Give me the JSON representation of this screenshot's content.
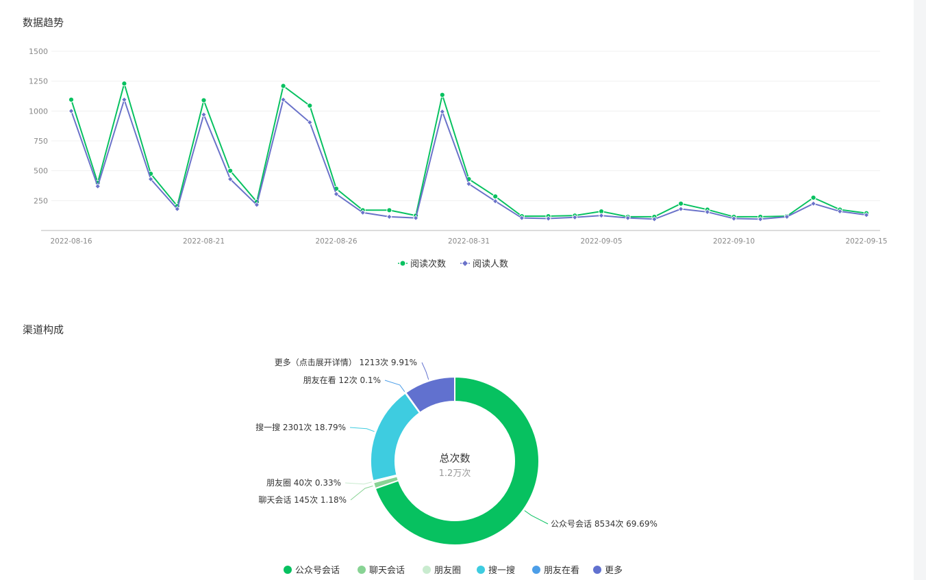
{
  "colors": {
    "green": "#07c160",
    "purple": "#6a72c9",
    "light_green": "#88d394",
    "pale_green": "#c9ebcf",
    "cyan": "#3ecce0",
    "blue": "#4c9ee8",
    "indigo": "#6171cf"
  },
  "trend_section": {
    "title": "数据趋势"
  },
  "channel_section": {
    "title": "渠道构成"
  },
  "chart_data": [
    {
      "type": "line",
      "x": [
        "2022-08-16",
        "2022-08-17",
        "2022-08-18",
        "2022-08-19",
        "2022-08-20",
        "2022-08-21",
        "2022-08-22",
        "2022-08-23",
        "2022-08-24",
        "2022-08-25",
        "2022-08-26",
        "2022-08-27",
        "2022-08-28",
        "2022-08-29",
        "2022-08-30",
        "2022-08-31",
        "2022-09-01",
        "2022-09-02",
        "2022-09-03",
        "2022-09-04",
        "2022-09-05",
        "2022-09-06",
        "2022-09-07",
        "2022-09-08",
        "2022-09-09",
        "2022-09-10",
        "2022-09-11",
        "2022-09-12",
        "2022-09-13",
        "2022-09-14",
        "2022-09-15"
      ],
      "x_tick_labels": [
        "2022-08-16",
        "2022-08-21",
        "2022-08-26",
        "2022-08-31",
        "2022-09-05",
        "2022-09-10",
        "2022-09-15"
      ],
      "y_ticks": [
        250,
        500,
        750,
        1000,
        1250,
        1500
      ],
      "ylim": [
        0,
        1500
      ],
      "series": [
        {
          "name": "阅读次数",
          "color": "#07c160",
          "marker": "circle",
          "values": [
            1095,
            400,
            1230,
            475,
            205,
            1090,
            500,
            240,
            1210,
            1045,
            350,
            170,
            170,
            125,
            1135,
            430,
            285,
            120,
            120,
            125,
            160,
            115,
            115,
            225,
            175,
            115,
            115,
            120,
            275,
            175,
            145
          ]
        },
        {
          "name": "阅读人数",
          "color": "#6a72c9",
          "marker": "diamond",
          "values": [
            1000,
            370,
            1095,
            430,
            180,
            970,
            430,
            215,
            1095,
            905,
            305,
            150,
            115,
            105,
            995,
            390,
            245,
            105,
            100,
            110,
            125,
            105,
            95,
            180,
            155,
            100,
            95,
            115,
            225,
            160,
            130
          ]
        }
      ],
      "legend": "bottom-center",
      "grid": true
    },
    {
      "type": "pie",
      "center_title": "总次数",
      "center_value": "1.2万次",
      "slices": [
        {
          "name": "公众号会话",
          "value": 8534,
          "percent": 69.69,
          "color": "#07c160",
          "label": "公众号会话 8534次 69.69%"
        },
        {
          "name": "聊天会话",
          "value": 145,
          "percent": 1.18,
          "color": "#88d394",
          "label": "聊天会话 145次 1.18%"
        },
        {
          "name": "朋友圈",
          "value": 40,
          "percent": 0.33,
          "color": "#c9ebcf",
          "label": "朋友圈 40次 0.33%"
        },
        {
          "name": "搜一搜",
          "value": 2301,
          "percent": 18.79,
          "color": "#3ecce0",
          "label": "搜一搜 2301次 18.79%"
        },
        {
          "name": "朋友在看",
          "value": 12,
          "percent": 0.1,
          "color": "#4c9ee8",
          "label": "朋友在看 12次 0.1%"
        },
        {
          "name": "更多",
          "value": 1213,
          "percent": 9.91,
          "color": "#6171cf",
          "label": "更多（点击展开详情） 1213次 9.91%"
        }
      ],
      "legend": "bottom-center"
    }
  ]
}
